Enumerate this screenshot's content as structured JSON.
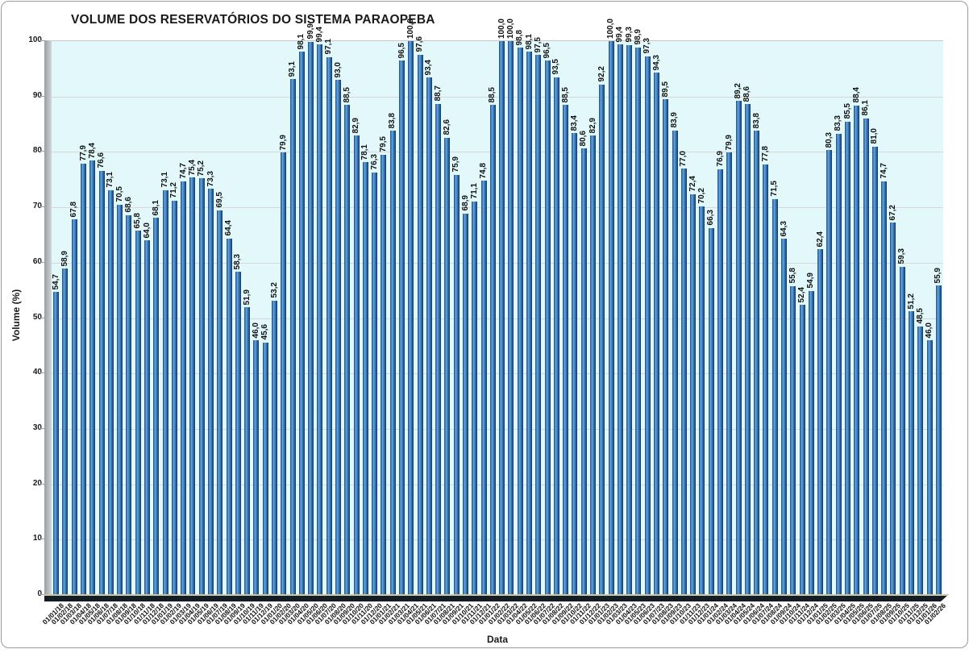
{
  "chart_data": {
    "type": "bar",
    "title": "VOLUME DOS RESERVATÓRIOS DO SISTEMA PARAOPEBA",
    "xlabel": "Data",
    "ylabel": "Volume (%)",
    "ylim": [
      0,
      100
    ],
    "y_ticks": [
      0,
      10,
      20,
      30,
      40,
      50,
      60,
      70,
      80,
      90,
      100
    ],
    "grid": true,
    "legend": "none",
    "decimal_separator": ",",
    "bar_color_main": "#2F6FB0",
    "bar_color_edge": "#16375E",
    "bar_color_highlight": "#6FA6D8",
    "plot_bg": "#E2F8FB",
    "gridline_color": "#D7D7D7",
    "floor_color": "#141C26",
    "floor_highlight": "#CFC79B",
    "wall_color": "#B7BCC0",
    "categories": [
      "01/01/18",
      "01/02/18",
      "01/03/18",
      "01/04/18",
      "01/05/18",
      "01/06/18",
      "01/07/18",
      "01/08/18",
      "01/09/18",
      "01/10/18",
      "01/11/18",
      "01/12/18",
      "01/01/19",
      "01/02/19",
      "01/03/19",
      "01/04/19",
      "01/05/19",
      "01/06/19",
      "01/07/19",
      "01/08/19",
      "01/09/19",
      "01/10/19",
      "01/11/19",
      "01/12/19",
      "01/01/20",
      "01/02/20",
      "01/03/20",
      "01/04/20",
      "01/05/20",
      "01/06/20",
      "01/07/20",
      "01/08/20",
      "01/09/20",
      "01/10/20",
      "01/11/20",
      "01/12/20",
      "01/01/21",
      "01/02/21",
      "01/03/21",
      "01/04/21",
      "01/05/21",
      "01/06/21",
      "01/07/21",
      "01/08/21",
      "01/09/21",
      "01/10/21",
      "01/11/21",
      "01/12/21",
      "01/01/22",
      "01/02/22",
      "01/03/22",
      "01/04/22",
      "01/05/22",
      "01/06/22",
      "01/07/22",
      "01/08/22",
      "01/09/22",
      "01/10/22",
      "01/11/22",
      "01/12/22",
      "01/01/23",
      "01/02/23",
      "01/03/23",
      "01/04/23",
      "01/05/23",
      "01/06/23",
      "01/07/23",
      "01/08/23",
      "01/09/23",
      "01/10/23",
      "01/11/23",
      "01/12/23",
      "01/01/24",
      "01/02/24",
      "01/03/24",
      "01/04/24",
      "01/05/24",
      "01/06/24",
      "01/07/24",
      "01/08/24",
      "01/09/24",
      "01/10/24",
      "01/11/24",
      "01/12/24",
      "01/01/25",
      "01/02/25",
      "01/03/25",
      "01/04/25",
      "01/05/25",
      "01/06/25",
      "01/07/25",
      "01/08/25",
      "01/09/25",
      "01/10/25",
      "01/11/25",
      "01/12/25",
      "01/01/26",
      "01/02/26"
    ],
    "values": [
      54.7,
      58.9,
      67.8,
      77.9,
      78.4,
      76.6,
      73.1,
      70.5,
      68.6,
      65.8,
      64.0,
      68.1,
      73.1,
      71.2,
      74.7,
      75.4,
      75.2,
      73.3,
      69.5,
      64.4,
      58.3,
      51.9,
      46.0,
      45.6,
      53.2,
      79.9,
      93.1,
      98.1,
      99.9,
      99.4,
      97.1,
      93.0,
      88.5,
      82.9,
      78.1,
      76.3,
      79.5,
      83.8,
      96.5,
      100.0,
      97.6,
      93.4,
      88.7,
      82.6,
      75.9,
      68.9,
      71.1,
      74.8,
      88.5,
      100.0,
      100.0,
      98.8,
      98.1,
      97.5,
      96.5,
      93.5,
      88.5,
      83.4,
      80.6,
      82.9,
      92.2,
      100.0,
      99.4,
      99.3,
      98.9,
      97.3,
      94.3,
      89.5,
      83.9,
      77.0,
      72.4,
      70.2,
      66.3,
      76.9,
      79.9,
      89.2,
      88.6,
      83.8,
      77.8,
      71.5,
      64.3,
      55.8,
      52.4,
      54.9,
      62.4,
      80.3,
      83.3,
      85.5,
      88.4,
      86.1,
      81.0,
      74.7,
      67.2,
      59.3,
      51.2,
      48.5,
      46.0,
      55.9
    ]
  }
}
